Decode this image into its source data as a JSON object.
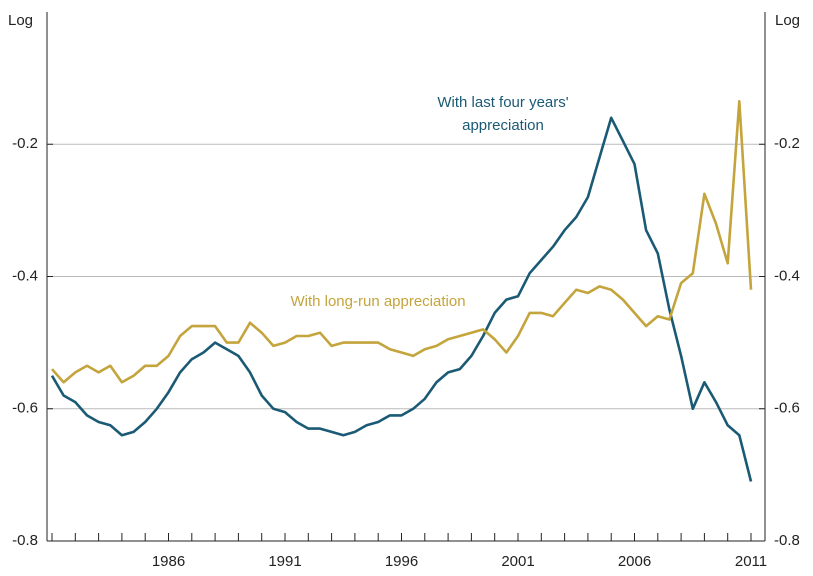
{
  "chart_data": {
    "type": "line",
    "y_label_left": "Log",
    "y_label_right": "Log",
    "x": [
      1981,
      1981.5,
      1982,
      1982.5,
      1983,
      1983.5,
      1984,
      1984.5,
      1985,
      1985.5,
      1986,
      1986.5,
      1987,
      1987.5,
      1988,
      1988.5,
      1989,
      1989.5,
      1990,
      1990.5,
      1991,
      1991.5,
      1992,
      1992.5,
      1993,
      1993.5,
      1994,
      1994.5,
      1995,
      1995.5,
      1996,
      1996.5,
      1997,
      1997.5,
      1998,
      1998.5,
      1999,
      1999.5,
      2000,
      2000.5,
      2001,
      2001.5,
      2002,
      2002.5,
      2003,
      2003.5,
      2004,
      2004.5,
      2005,
      2005.5,
      2006,
      2006.5,
      2007,
      2007.5,
      2008,
      2008.5,
      2009,
      2009.5,
      2010,
      2010.5,
      2011
    ],
    "series": [
      {
        "name": "With last four years' appreciation",
        "color": "#1b5a75",
        "values": [
          -0.55,
          -0.58,
          -0.59,
          -0.61,
          -0.62,
          -0.625,
          -0.64,
          -0.635,
          -0.62,
          -0.6,
          -0.575,
          -0.545,
          -0.525,
          -0.515,
          -0.5,
          -0.51,
          -0.52,
          -0.545,
          -0.58,
          -0.6,
          -0.605,
          -0.62,
          -0.63,
          -0.63,
          -0.635,
          -0.64,
          -0.635,
          -0.625,
          -0.62,
          -0.61,
          -0.61,
          -0.6,
          -0.585,
          -0.56,
          -0.545,
          -0.54,
          -0.52,
          -0.49,
          -0.455,
          -0.435,
          -0.43,
          -0.395,
          -0.375,
          -0.355,
          -0.33,
          -0.31,
          -0.28,
          -0.22,
          -0.16,
          -0.195,
          -0.23,
          -0.33,
          -0.365,
          -0.45,
          -0.52,
          -0.6,
          -0.56,
          -0.59,
          -0.625,
          -0.64,
          -0.71
        ]
      },
      {
        "name": "With long-run appreciation",
        "color": "#c4a43c",
        "values": [
          -0.54,
          -0.56,
          -0.545,
          -0.535,
          -0.545,
          -0.535,
          -0.56,
          -0.55,
          -0.535,
          -0.535,
          -0.52,
          -0.49,
          -0.475,
          -0.475,
          -0.475,
          -0.5,
          -0.5,
          -0.47,
          -0.485,
          -0.505,
          -0.5,
          -0.49,
          -0.49,
          -0.485,
          -0.505,
          -0.5,
          -0.5,
          -0.5,
          -0.5,
          -0.51,
          -0.515,
          -0.52,
          -0.51,
          -0.505,
          -0.495,
          -0.49,
          -0.485,
          -0.48,
          -0.495,
          -0.515,
          -0.49,
          -0.455,
          -0.455,
          -0.46,
          -0.44,
          -0.42,
          -0.425,
          -0.415,
          -0.42,
          -0.435,
          -0.455,
          -0.475,
          -0.46,
          -0.465,
          -0.41,
          -0.395,
          -0.275,
          -0.32,
          -0.38,
          -0.135,
          -0.42
        ]
      }
    ],
    "annotations": [
      {
        "lines": [
          "With last four years'",
          "appreciation"
        ],
        "series": 0
      },
      {
        "lines": [
          "With long-run appreciation"
        ],
        "series": 1
      }
    ],
    "xlim": [
      1981,
      2011
    ],
    "xticks": [
      1986,
      1991,
      1996,
      2001,
      2006,
      2011
    ],
    "ylim": [
      -0.8,
      0
    ],
    "yticks": [
      -0.8,
      -0.6,
      -0.4,
      -0.2
    ],
    "grid": true
  }
}
